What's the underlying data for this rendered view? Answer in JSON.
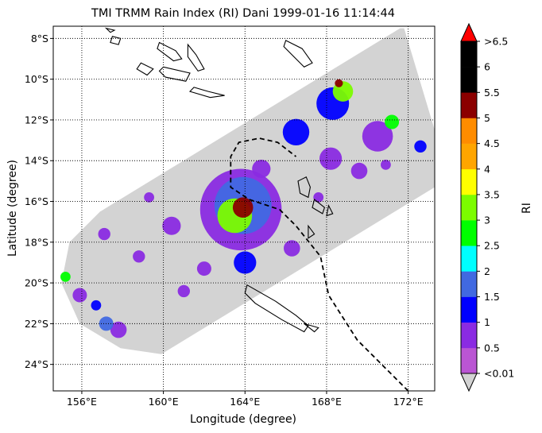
{
  "chart_data": {
    "type": "map",
    "title": "TMI TRMM Rain Index (RI) Dani 1999-01-16 11:14:44",
    "xlabel": "Longitude (degree)",
    "ylabel": "Latitude (degree)",
    "xlim": [
      154.6,
      173.3
    ],
    "ylim": [
      -25.3,
      -7.4
    ],
    "grid": "dotted",
    "x_ticks": [
      156,
      160,
      164,
      168,
      172
    ],
    "x_tick_labels": [
      "156°E",
      "160°E",
      "164°E",
      "168°E",
      "172°E"
    ],
    "y_ticks": [
      -8,
      -10,
      -12,
      -14,
      -16,
      -18,
      -20,
      -22,
      -24
    ],
    "y_tick_labels": [
      "8°S",
      "10°S",
      "12°S",
      "14°S",
      "16°S",
      "18°S",
      "20°S",
      "22°S",
      "24°S"
    ],
    "swath_polygon": [
      [
        171.8,
        -7.5
      ],
      [
        173.3,
        -12.5
      ],
      [
        173.3,
        -15.3
      ],
      [
        159.9,
        -23.5
      ],
      [
        157.9,
        -23.2
      ],
      [
        155.9,
        -22.0
      ],
      [
        155.0,
        -20.0
      ],
      [
        155.4,
        -18.0
      ],
      [
        156.9,
        -16.5
      ],
      [
        171.6,
        -7.5
      ]
    ],
    "swath_fill": "#d3d3d3",
    "track": {
      "style": "dashed",
      "points": [
        [
          172.0,
          -25.3
        ],
        [
          169.5,
          -22.8
        ],
        [
          168.1,
          -20.6
        ],
        [
          167.7,
          -18.7
        ],
        [
          166.5,
          -17.2
        ],
        [
          165.7,
          -16.4
        ],
        [
          164.2,
          -15.9
        ],
        [
          163.3,
          -15.3
        ],
        [
          163.3,
          -13.8
        ],
        [
          163.7,
          -13.1
        ],
        [
          164.7,
          -12.9
        ],
        [
          165.6,
          -13.1
        ],
        [
          166.5,
          -13.8
        ]
      ]
    },
    "cyclone_center": [
      163.9,
      -16.3
    ],
    "rain_cells": [
      {
        "lon": 163.9,
        "lat": -16.3,
        "r": 1.0,
        "ri": 5
      },
      {
        "lon": 163.5,
        "lat": -16.7,
        "r": 1.7,
        "ri": 3
      },
      {
        "lon": 163.9,
        "lat": -16.2,
        "r": 2.8,
        "ri": 1.5
      },
      {
        "lon": 163.8,
        "lat": -16.4,
        "r": 4.0,
        "ri": 0.5
      },
      {
        "lon": 164.0,
        "lat": -19.0,
        "r": 1.1,
        "ri": 1
      },
      {
        "lon": 166.3,
        "lat": -18.3,
        "r": 0.8,
        "ri": 0.5
      },
      {
        "lon": 168.6,
        "lat": -10.2,
        "r": 0.4,
        "ri": 5
      },
      {
        "lon": 168.8,
        "lat": -10.6,
        "r": 1.0,
        "ri": 3
      },
      {
        "lon": 168.3,
        "lat": -11.2,
        "r": 1.6,
        "ri": 1
      },
      {
        "lon": 171.2,
        "lat": -12.1,
        "r": 0.7,
        "ri": 2.5
      },
      {
        "lon": 170.5,
        "lat": -12.8,
        "r": 1.5,
        "ri": 0.5
      },
      {
        "lon": 166.5,
        "lat": -12.6,
        "r": 1.3,
        "ri": 1
      },
      {
        "lon": 172.6,
        "lat": -13.3,
        "r": 0.6,
        "ri": 1
      },
      {
        "lon": 168.2,
        "lat": -13.9,
        "r": 1.1,
        "ri": 0.5
      },
      {
        "lon": 169.6,
        "lat": -14.5,
        "r": 0.8,
        "ri": 0.5
      },
      {
        "lon": 164.8,
        "lat": -14.4,
        "r": 0.9,
        "ri": 0.5
      },
      {
        "lon": 167.6,
        "lat": -15.8,
        "r": 0.5,
        "ri": 0.5
      },
      {
        "lon": 155.2,
        "lat": -19.7,
        "r": 0.5,
        "ri": 2.5
      },
      {
        "lon": 155.9,
        "lat": -20.6,
        "r": 0.7,
        "ri": 0.5
      },
      {
        "lon": 156.7,
        "lat": -21.1,
        "r": 0.5,
        "ri": 1
      },
      {
        "lon": 157.2,
        "lat": -22.0,
        "r": 0.7,
        "ri": 1.5
      },
      {
        "lon": 157.8,
        "lat": -22.3,
        "r": 0.8,
        "ri": 0.5
      },
      {
        "lon": 157.1,
        "lat": -17.6,
        "r": 0.6,
        "ri": 0.5
      },
      {
        "lon": 158.8,
        "lat": -18.7,
        "r": 0.6,
        "ri": 0.5
      },
      {
        "lon": 159.3,
        "lat": -15.8,
        "r": 0.5,
        "ri": 0.5
      },
      {
        "lon": 160.4,
        "lat": -17.2,
        "r": 0.9,
        "ri": 0.5
      },
      {
        "lon": 161.0,
        "lat": -20.4,
        "r": 0.6,
        "ri": 0.5
      },
      {
        "lon": 170.9,
        "lat": -14.2,
        "r": 0.5,
        "ri": 0.5
      },
      {
        "lon": 162.0,
        "lat": -19.3,
        "r": 0.7,
        "ri": 0.5
      }
    ],
    "islands": [
      {
        "name": "",
        "points": [
          [
            166.0,
            -8.1
          ],
          [
            166.8,
            -8.5
          ],
          [
            167.3,
            -9.2
          ],
          [
            166.9,
            -9.4
          ],
          [
            166.4,
            -8.9
          ],
          [
            165.9,
            -8.4
          ]
        ]
      },
      {
        "name": "",
        "points": [
          [
            159.8,
            -8.2
          ],
          [
            160.6,
            -8.6
          ],
          [
            160.9,
            -9.0
          ],
          [
            160.5,
            -9.1
          ],
          [
            159.7,
            -8.5
          ]
        ]
      },
      {
        "name": "",
        "points": [
          [
            158.9,
            -9.2
          ],
          [
            159.5,
            -9.5
          ],
          [
            159.2,
            -9.8
          ],
          [
            158.7,
            -9.5
          ]
        ]
      },
      {
        "name": "",
        "points": [
          [
            160.0,
            -9.4
          ],
          [
            161.3,
            -9.7
          ],
          [
            161.1,
            -10.1
          ],
          [
            160.1,
            -9.9
          ],
          [
            159.8,
            -9.6
          ]
        ]
      },
      {
        "name": "",
        "points": [
          [
            161.5,
            -10.4
          ],
          [
            162.2,
            -10.6
          ],
          [
            163.0,
            -10.8
          ],
          [
            162.3,
            -10.9
          ],
          [
            161.3,
            -10.6
          ]
        ]
      },
      {
        "name": "",
        "points": [
          [
            161.2,
            -8.3
          ],
          [
            161.6,
            -8.8
          ],
          [
            162.0,
            -9.5
          ],
          [
            161.7,
            -9.6
          ],
          [
            161.2,
            -8.9
          ]
        ]
      },
      {
        "name": "",
        "points": [
          [
            157.5,
            -7.9
          ],
          [
            157.9,
            -8.0
          ],
          [
            157.8,
            -8.3
          ],
          [
            157.4,
            -8.2
          ]
        ]
      },
      {
        "name": "",
        "points": [
          [
            157.2,
            -7.5
          ],
          [
            157.6,
            -7.6
          ],
          [
            157.4,
            -7.7
          ]
        ]
      },
      {
        "name": "",
        "points": [
          [
            167.0,
            -14.8
          ],
          [
            167.2,
            -15.3
          ],
          [
            167.1,
            -15.8
          ],
          [
            166.7,
            -15.6
          ],
          [
            166.6,
            -15.0
          ]
        ]
      },
      {
        "name": "",
        "points": [
          [
            167.4,
            -15.9
          ],
          [
            167.9,
            -16.3
          ],
          [
            167.8,
            -16.6
          ],
          [
            167.3,
            -16.3
          ]
        ]
      },
      {
        "name": "",
        "points": [
          [
            168.1,
            -16.2
          ],
          [
            168.3,
            -16.6
          ],
          [
            168.0,
            -16.7
          ]
        ]
      },
      {
        "name": "",
        "points": [
          [
            167.1,
            -17.2
          ],
          [
            167.4,
            -17.6
          ],
          [
            167.1,
            -17.8
          ]
        ]
      },
      {
        "name": "",
        "points": [
          [
            164.1,
            -20.1
          ],
          [
            165.5,
            -20.9
          ],
          [
            166.5,
            -21.6
          ],
          [
            167.1,
            -22.1
          ],
          [
            166.9,
            -22.4
          ],
          [
            165.8,
            -21.8
          ],
          [
            164.5,
            -21.0
          ],
          [
            164.0,
            -20.5
          ]
        ]
      },
      {
        "name": "",
        "points": [
          [
            166.9,
            -22.0
          ],
          [
            167.6,
            -22.2
          ],
          [
            167.4,
            -22.4
          ]
        ]
      }
    ],
    "colorbar": {
      "label": "RI",
      "extend_top_color": "#ff0000",
      "extend_bottom_color": "#d3d3d3",
      "tick_labels": [
        "<0.01",
        "0.5",
        "1",
        "1.5",
        "2",
        "2.5",
        "3",
        "3.5",
        "4",
        "4.5",
        "5",
        "5.5",
        "6",
        ">6.5"
      ],
      "segment_colors": [
        "#ba55d3",
        "#8a2be2",
        "#0000ff",
        "#4169e1",
        "#00ffff",
        "#00ff00",
        "#7cfc00",
        "#ffff00",
        "#ffa500",
        "#ff8c00",
        "#8b0000",
        "#000000",
        "#000000"
      ]
    }
  }
}
